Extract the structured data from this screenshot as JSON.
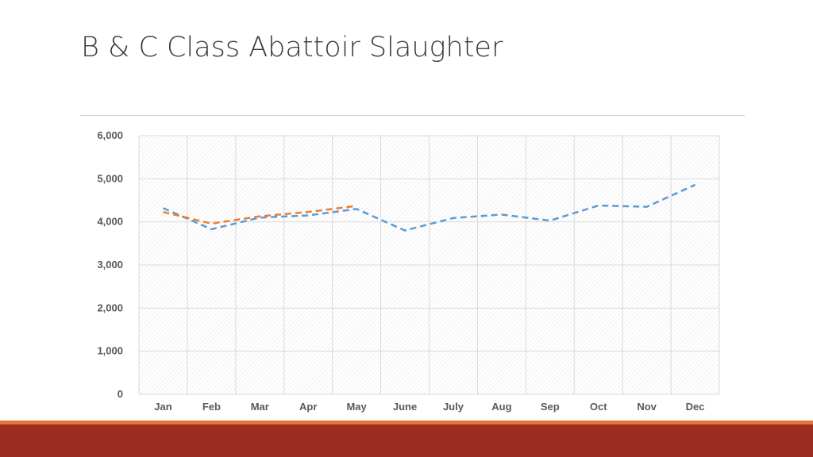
{
  "slide": {
    "title": "B & C Class Abattoir Slaughter"
  },
  "colors": {
    "series_blue": "#5b9bd5",
    "series_orange": "#ed7d31",
    "accent_bar_top": "#e07a3a",
    "accent_bar_bottom": "#9c2c1f",
    "gridline": "#d9d9d9"
  },
  "chart_data": {
    "type": "line",
    "title": "",
    "xlabel": "",
    "ylabel": "",
    "categories": [
      "Jan",
      "Feb",
      "Mar",
      "Apr",
      "May",
      "June",
      "July",
      "Aug",
      "Sep",
      "Oct",
      "Nov",
      "Dec"
    ],
    "ylim": [
      0,
      6000
    ],
    "yticks": [
      0,
      1000,
      2000,
      3000,
      4000,
      5000,
      6000
    ],
    "ytick_labels": [
      "0",
      "1,000",
      "2,000",
      "3,000",
      "4,000",
      "5,000",
      "6,000"
    ],
    "grid": true,
    "legend": "none",
    "series": [
      {
        "color": "#5b9bd5",
        "style": "dashed",
        "values": [
          4320,
          3830,
          4100,
          4150,
          4300,
          3800,
          4090,
          4170,
          4030,
          4380,
          4350,
          4860
        ]
      },
      {
        "color": "#ed7d31",
        "style": "dashed",
        "values": [
          4230,
          3960,
          4130,
          4230,
          4370,
          null,
          null,
          null,
          null,
          null,
          null,
          null
        ]
      }
    ]
  }
}
